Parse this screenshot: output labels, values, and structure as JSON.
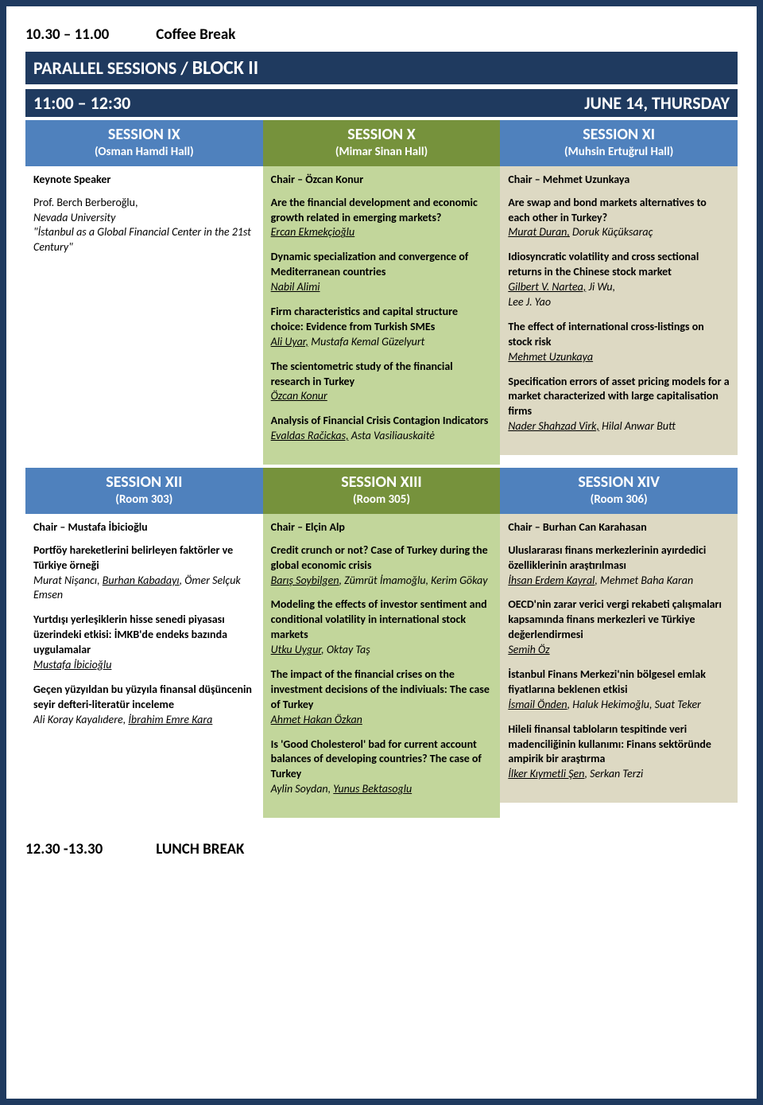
{
  "coffee_break": {
    "time": "10.30 – 11.00",
    "label": "Coffee Break"
  },
  "banner": {
    "text_a": "PARALLEL SESSIONS  /  ",
    "text_b": "BLOCK II"
  },
  "time_row": {
    "time": "11:00 – 12:30",
    "day": "JUNE 14, THURSDAY"
  },
  "row1": {
    "c1": {
      "head": {
        "sess": "SESSION IX",
        "hall": "(Osman Hamdi Hall)",
        "bg": "blue"
      },
      "body": {
        "bg": "white",
        "chair": "Keynote Speaker",
        "items": [
          {
            "title": "",
            "authors_html": "Prof. Berch Berberoğlu,",
            "extra": "Nevada  University\n\"İstanbul as a Global Financial Center in the 21st Century\""
          }
        ]
      }
    },
    "c2": {
      "head": {
        "sess": "SESSION X",
        "hall": "(Mimar Sinan Hall)",
        "bg": "olive"
      },
      "body": {
        "bg": "olive",
        "chair": "Chair – Özcan Konur",
        "items": [
          {
            "title": "Are the financial development and economic growth related in emerging markets?",
            "presenter": "Ercan Ekmekçioğlu",
            "others": ""
          },
          {
            "title": "Dynamic specialization and convergence of Mediterranean countries",
            "presenter": "Nabil Alimi",
            "others": ""
          },
          {
            "title": "Firm characteristics and capital structure choice: Evidence from Turkish SMEs",
            "presenter": "Ali Uyar,",
            "others": " Mustafa Kemal Güzelyurt"
          },
          {
            "title": "The scientometric study of the financial research in Turkey",
            "presenter": "Özcan Konur",
            "others": ""
          },
          {
            "title": "Analysis of Financial Crisis Contagion Indicators",
            "presenter": "Evaldas Račickas,",
            "others": " Asta Vasiliauskaitė"
          }
        ]
      }
    },
    "c3": {
      "head": {
        "sess": "SESSION XI",
        "hall": "(Muhsin Ertuğrul  Hall)",
        "bg": "blue"
      },
      "body": {
        "bg": "tan",
        "chair": "Chair – Mehmet Uzunkaya",
        "items": [
          {
            "title": "Are swap and bond markets alternatives to each other in Turkey?",
            "presenter": "Murat Duran,",
            "others": " Doruk Küçüksaraç"
          },
          {
            "title": "Idiosyncratic volatility and cross sectional returns in the Chinese stock market",
            "presenter": "Gilbert V. Nartea,",
            "others": " Ji Wu,\nLee J. Yao"
          },
          {
            "title": "The effect of international cross-listings on stock risk",
            "presenter": "Mehmet Uzunkaya",
            "others": ""
          },
          {
            "title": "Specification errors of asset pricing models for a market characterized with large capitalisation firms",
            "presenter": "Nader Shahzad Virk,",
            "others": " Hilal Anwar Butt"
          }
        ]
      }
    }
  },
  "row2": {
    "c1": {
      "head": {
        "sess": "SESSION XII",
        "hall": "(Room 303)",
        "bg": "blue"
      },
      "body": {
        "bg": "white",
        "chair": "Chair – Mustafa İbicioğlu",
        "items": [
          {
            "title": "Portföy hareketlerini belirleyen faktörler ve Türkiye örneği",
            "presenter": "Burhan Kabadayı",
            "prefix": "Murat Nişancı, ",
            "others": ", Ömer Selçuk Emsen"
          },
          {
            "title": "Yurtdışı yerleşiklerin hisse senedi piyasası üzerindeki etkisi: İMKB'de endeks bazında uygulamalar",
            "presenter": "Mustafa İbicioğlu",
            "others": ""
          },
          {
            "title": "Geçen yüzyıldan bu yüzyıla finansal düşüncenin seyir defteri-literatür inceleme",
            "presenter": "İbrahim Emre Kara",
            "prefix": "Ali Koray Kayalıdere, ",
            "others": ""
          }
        ]
      }
    },
    "c2": {
      "head": {
        "sess": "SESSION XIII",
        "hall": "(Room 305)",
        "bg": "olive"
      },
      "body": {
        "bg": "olive",
        "chair": "Chair – Elçin Alp",
        "items": [
          {
            "title": "Credit crunch or not? Case of Turkey during the global economic crisis",
            "presenter": "Barış Soybilgen",
            "others": ", Zümrüt İmamoğlu, Kerim Gökay"
          },
          {
            "title": "Modeling the effects of investor sentiment and conditional volatility in international stock markets",
            "presenter": "Utku Uygur",
            "others": ", Oktay Taş"
          },
          {
            "title": "The impact of the financial crises on the investment decisions of the indiviuals: The case of Turkey",
            "presenter": "Ahmet Hakan Özkan",
            "others": ""
          },
          {
            "title": "Is 'Good Cholesterol' bad for current account balances of developing countries? The case of Turkey",
            "presenter": "Yunus Bektasoglu",
            "prefix": "Aylin Soydan, ",
            "others": ""
          }
        ]
      }
    },
    "c3": {
      "head": {
        "sess": "SESSION XIV",
        "hall": "(Room 306)",
        "bg": "blue"
      },
      "body": {
        "bg": "tan",
        "chair": "Chair – Burhan Can Karahasan",
        "items": [
          {
            "title": "Uluslararası finans merkezlerinin ayırdedici özelliklerinin araştırılması",
            "presenter": "İhsan Erdem Kayral",
            "others": ", Mehmet Baha Karan"
          },
          {
            "title": "OECD'nin zarar verici vergi rekabeti çalışmaları kapsamında finans merkezleri ve Türkiye değerlendirmesi",
            "presenter": "Semih Öz",
            "others": ""
          },
          {
            "title": "İstanbul Finans Merkezi'nin bölgesel emlak fiyatlarına beklenen etkisi",
            "presenter": "İsmail Önden",
            "others": ", Haluk Hekimoğlu, Suat Teker"
          },
          {
            "title": "Hileli finansal tabloların tespitinde veri madenciliğinin kullanımı: Finans sektöründe ampirik bir araştırma",
            "presenter": "İlker Kıymetli Şen",
            "others": ", Serkan Terzi"
          }
        ]
      }
    }
  },
  "lunch": {
    "time": "12.30 -13.30",
    "label": "LUNCH BREAK"
  },
  "colors": {
    "border": "#1f3a5f",
    "blue_head": "#4f81bd",
    "olive_head": "#76923c",
    "olive_body": "#c2d69b",
    "tan_body": "#ddd9c3"
  }
}
